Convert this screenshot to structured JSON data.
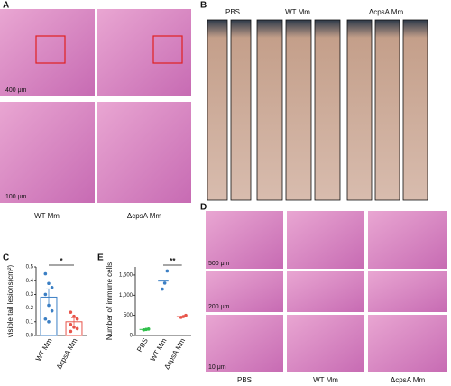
{
  "panel_a": {
    "label": "A",
    "scale_bars": [
      "400 μm",
      "100 μm"
    ],
    "groups": [
      "WT Mm",
      "ΔcpsA Mm"
    ]
  },
  "panel_b": {
    "label": "B",
    "groups": [
      "PBS",
      "WT Mm",
      "ΔcpsA Mm"
    ]
  },
  "panel_d": {
    "label": "D",
    "scale_bars": [
      "500 μm",
      "200 μm",
      "10 μm"
    ],
    "groups": [
      "PBS",
      "WT Mm",
      "ΔcpsA Mm"
    ]
  },
  "chart_data": [
    {
      "type": "bar",
      "label": "C",
      "ylabel": "visible tail lesions(cm²)",
      "categories": [
        "WT Mm",
        "ΔcpsA Mm"
      ],
      "values": [
        0.28,
        0.1
      ],
      "errors": [
        0.06,
        0.03
      ],
      "points": [
        [
          0.45,
          0.38,
          0.35,
          0.3,
          0.22,
          0.18,
          0.12,
          0.1
        ],
        [
          0.17,
          0.14,
          0.12,
          0.08,
          0.06,
          0.05,
          0.03
        ]
      ],
      "colors": [
        "#3b7fc4",
        "#e8544a"
      ],
      "annotation": "*",
      "ylim": [
        0,
        0.5
      ],
      "yticks": [
        {
          "value": 0,
          "label": "0.0"
        },
        0.1,
        0.2,
        0.3,
        0.4,
        0.5
      ]
    },
    {
      "type": "strip",
      "label": "E",
      "ylabel": "Number of immune cells",
      "categories": [
        "PBS",
        "WT Mm",
        "ΔcpsA Mm"
      ],
      "values": [
        150,
        1350,
        470
      ],
      "points": [
        [
          140,
          150,
          160
        ],
        [
          1150,
          1300,
          1600
        ],
        [
          450,
          470,
          500
        ]
      ],
      "colors": [
        "#2fbf4a",
        "#3b7fc4",
        "#e8544a"
      ],
      "annotation": "**",
      "ylim": [
        0,
        1700
      ],
      "yticks": [
        0,
        500,
        {
          "value": 1000,
          "label": "1,000"
        },
        {
          "value": 1500,
          "label": "1,500"
        }
      ]
    }
  ]
}
